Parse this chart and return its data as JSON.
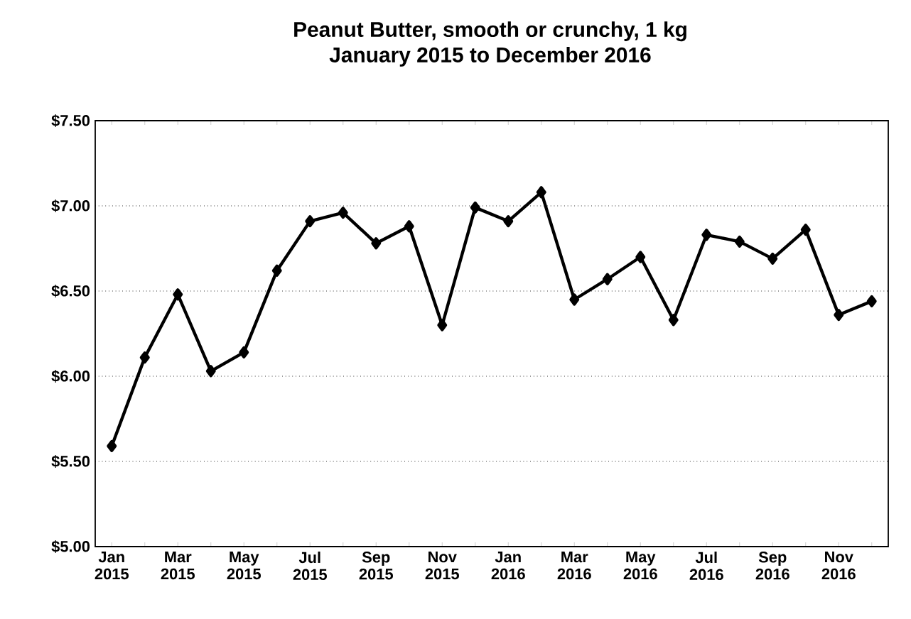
{
  "chart_data": {
    "type": "line",
    "title": "Peanut Butter, smooth or crunchy, 1 kg",
    "subtitle": "January 2015 to December 2016",
    "categories": [
      "Jan 2015",
      null,
      "Mar 2015",
      null,
      "May 2015",
      null,
      "Jul 2015",
      null,
      "Sep 2015",
      null,
      "Nov 2015",
      null,
      "Jan 2016",
      null,
      "Mar 2016",
      null,
      "May 2016",
      null,
      "Jul 2016",
      null,
      "Sep 2016",
      null,
      "Nov 2016",
      null
    ],
    "series": [
      {
        "color": "#000000",
        "values": [
          5.59,
          6.11,
          6.48,
          6.03,
          6.14,
          6.62,
          6.91,
          6.96,
          6.78,
          6.88,
          6.3,
          6.99,
          6.91,
          7.08,
          6.45,
          6.57,
          6.7,
          6.33,
          6.83,
          6.79,
          6.69,
          6.86,
          6.36,
          6.44
        ]
      }
    ],
    "ylim": [
      5.0,
      7.5
    ],
    "yticks": [
      {
        "value": 5.0,
        "label": "$5.00"
      },
      {
        "value": 5.5,
        "label": "$5.50"
      },
      {
        "value": 6.0,
        "label": "$6.00"
      },
      {
        "value": 6.5,
        "label": "$6.50"
      },
      {
        "value": 7.0,
        "label": "$7.00"
      },
      {
        "value": 7.5,
        "label": "$7.50"
      }
    ],
    "grid": "y",
    "marker": "diamond",
    "line_style": "solid"
  }
}
